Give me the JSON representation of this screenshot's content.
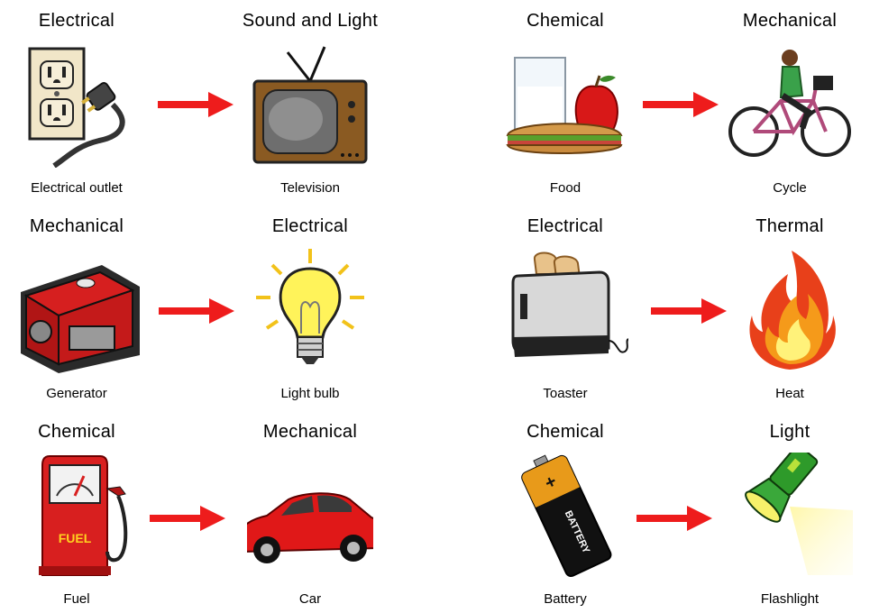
{
  "rows": [
    {
      "from": {
        "energy": "Electrical",
        "object": "Electrical outlet",
        "icon": "electrical-outlet-icon"
      },
      "to": {
        "energy": "Sound and Light",
        "object": "Television",
        "icon": "television-icon"
      }
    },
    {
      "from": {
        "energy": "Chemical",
        "object": "Food",
        "icon": "food-icon"
      },
      "to": {
        "energy": "Mechanical",
        "object": "Cycle",
        "icon": "bicycle-icon"
      }
    },
    {
      "from": {
        "energy": "Mechanical",
        "object": "Generator",
        "icon": "generator-icon"
      },
      "to": {
        "energy": "Electrical",
        "object": "Light bulb",
        "icon": "light-bulb-icon"
      }
    },
    {
      "from": {
        "energy": "Electrical",
        "object": "Toaster",
        "icon": "toaster-icon"
      },
      "to": {
        "energy": "Thermal",
        "object": "Heat",
        "icon": "fire-icon"
      }
    },
    {
      "from": {
        "energy": "Chemical",
        "object": "Fuel",
        "icon": "fuel-pump-icon",
        "label": "FUEL"
      },
      "to": {
        "energy": "Mechanical",
        "object": "Car",
        "icon": "car-icon"
      }
    },
    {
      "from": {
        "energy": "Chemical",
        "object": "Battery",
        "icon": "battery-icon",
        "label": "BATTERY"
      },
      "to": {
        "energy": "Light",
        "object": "Flashlight",
        "icon": "flashlight-icon"
      }
    }
  ],
  "colors": {
    "arrow": "#ee1c1c",
    "text": "#000000",
    "background": "#ffffff"
  }
}
